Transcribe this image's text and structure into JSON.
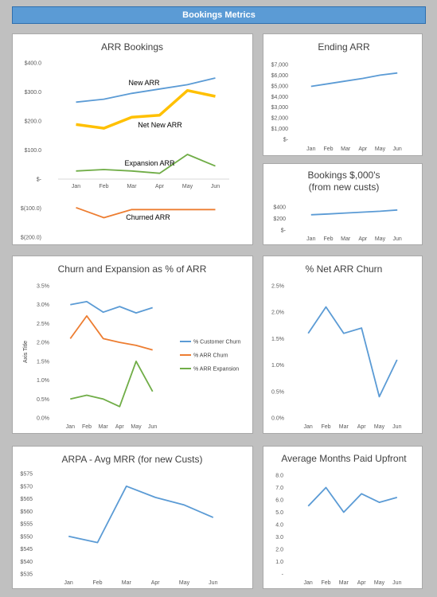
{
  "header": {
    "title": "Bookings Metrics"
  },
  "colors": {
    "blue": "#5b9bd5",
    "orange": "#ed7d31",
    "gold": "#ffc000",
    "green": "#70ad47",
    "header": "#5b9bd5"
  },
  "chart_data": [
    {
      "id": "arr-bookings",
      "type": "line",
      "title": "ARR Bookings",
      "categories": [
        "Jan",
        "Feb",
        "Mar",
        "Apr",
        "May",
        "Jun"
      ],
      "yticks": [
        "$400.0",
        "$300.0",
        "$200.0",
        "$100.0",
        "$-",
        "$(100.0)",
        "$(200.0)"
      ],
      "ylim": [
        -200,
        400
      ],
      "series": [
        {
          "name": "New ARR",
          "color": "#5b9bd5",
          "values": [
            265,
            275,
            295,
            310,
            325,
            348
          ]
        },
        {
          "name": "Net New ARR",
          "color": "#ffc000",
          "values": [
            188,
            175,
            213,
            220,
            305,
            285
          ]
        },
        {
          "name": "Expansion ARR",
          "color": "#70ad47",
          "values": [
            28,
            33,
            28,
            20,
            85,
            45
          ]
        },
        {
          "name": "Churned ARR",
          "color": "#ed7d31",
          "values": [
            -98,
            -133,
            -105,
            -105,
            -105,
            -105
          ]
        }
      ]
    },
    {
      "id": "ending-arr",
      "type": "line",
      "title": "Ending ARR",
      "categories": [
        "Jan",
        "Feb",
        "Mar",
        "Apr",
        "May",
        "Jun"
      ],
      "yticks": [
        "$7,000",
        "$6,000",
        "$5,000",
        "$4,000",
        "$3,000",
        "$2,000",
        "$1,000",
        "$-"
      ],
      "ylim": [
        0,
        7000
      ],
      "series": [
        {
          "color": "#5b9bd5",
          "values": [
            4950,
            5200,
            5450,
            5700,
            6000,
            6200
          ]
        }
      ]
    },
    {
      "id": "bookings-new-custs",
      "type": "line",
      "title_lines": [
        "Bookings $,000's",
        "(from new custs)"
      ],
      "categories": [
        "Jan",
        "Feb",
        "Mar",
        "Apr",
        "May",
        "Jun"
      ],
      "yticks": [
        "$400",
        "$200",
        "$-"
      ],
      "ylim": [
        0,
        400
      ],
      "series": [
        {
          "color": "#5b9bd5",
          "values": [
            265,
            278,
            295,
            310,
            325,
            348
          ]
        }
      ]
    },
    {
      "id": "churn-expansion",
      "type": "line",
      "title": "Churn and Expansion as % of ARR",
      "ylabel": "Axis Title",
      "categories": [
        "Jan",
        "Feb",
        "Mar",
        "Apr",
        "May",
        "Jun"
      ],
      "yticks": [
        "3.5%",
        "3.0%",
        "2.5%",
        "2.0%",
        "1.5%",
        "1.0%",
        "0.5%",
        "0.0%"
      ],
      "ylim": [
        0,
        3.5
      ],
      "series": [
        {
          "name": "% Customer Churn",
          "color": "#5b9bd5",
          "values": [
            3.0,
            3.08,
            2.8,
            2.95,
            2.78,
            2.92
          ]
        },
        {
          "name": "% ARR Churn",
          "color": "#ed7d31",
          "values": [
            2.1,
            2.7,
            2.1,
            2.0,
            1.92,
            1.8
          ]
        },
        {
          "name": "% ARR Expansion",
          "color": "#70ad47",
          "values": [
            0.5,
            0.6,
            0.5,
            0.3,
            1.5,
            0.7
          ]
        }
      ]
    },
    {
      "id": "net-arr-churn",
      "type": "line",
      "title": "% Net ARR Churn",
      "categories": [
        "Jan",
        "Feb",
        "Mar",
        "Apr",
        "May",
        "Jun"
      ],
      "yticks": [
        "2.5%",
        "2.0%",
        "1.5%",
        "1.0%",
        "0.5%",
        "0.0%"
      ],
      "ylim": [
        0,
        2.5
      ],
      "series": [
        {
          "color": "#5b9bd5",
          "values": [
            1.6,
            2.1,
            1.6,
            1.7,
            0.4,
            1.1
          ]
        }
      ]
    },
    {
      "id": "arpa",
      "type": "line",
      "title": "ARPA - Avg MRR (for new Custs)",
      "categories": [
        "Jan",
        "Feb",
        "Mar",
        "Apr",
        "May",
        "Jun"
      ],
      "yticks": [
        "$575",
        "$570",
        "$565",
        "$560",
        "$555",
        "$550",
        "$545",
        "$540",
        "$535"
      ],
      "ylim": [
        535,
        575
      ],
      "series": [
        {
          "color": "#5b9bd5",
          "values": [
            550,
            547.5,
            570,
            565.5,
            562.5,
            557.5
          ]
        }
      ]
    },
    {
      "id": "months-paid-upfront",
      "type": "line",
      "title": "Average Months Paid Upfront",
      "categories": [
        "Jan",
        "Feb",
        "Mar",
        "Apr",
        "May",
        "Jun"
      ],
      "yticks": [
        "8.0",
        "7.0",
        "6.0",
        "5.0",
        "4.0",
        "3.0",
        "2.0",
        "1.0",
        "-"
      ],
      "ylim": [
        0,
        8
      ],
      "series": [
        {
          "color": "#5b9bd5",
          "values": [
            5.5,
            7.0,
            5.0,
            6.5,
            5.8,
            6.2
          ]
        }
      ]
    }
  ]
}
